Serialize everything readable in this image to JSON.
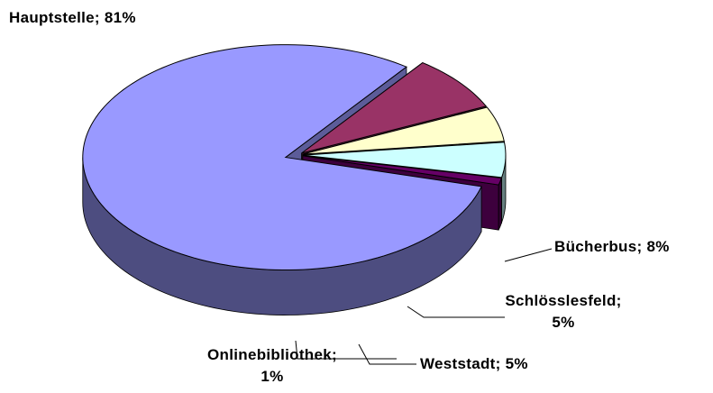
{
  "chart_data": {
    "type": "pie3d",
    "values": [
      81,
      8,
      5,
      5,
      1
    ],
    "value_labels": [
      "Hauptstelle; 81%",
      "Bücherbus; 8%",
      "Schlösslesfeld; 5%",
      "Weststadt; 5%",
      "Onlinebibliothek; 1%"
    ],
    "colors": [
      "#9999ff",
      "#993366",
      "#ffffcc",
      "#ccffff",
      "#660066"
    ]
  }
}
